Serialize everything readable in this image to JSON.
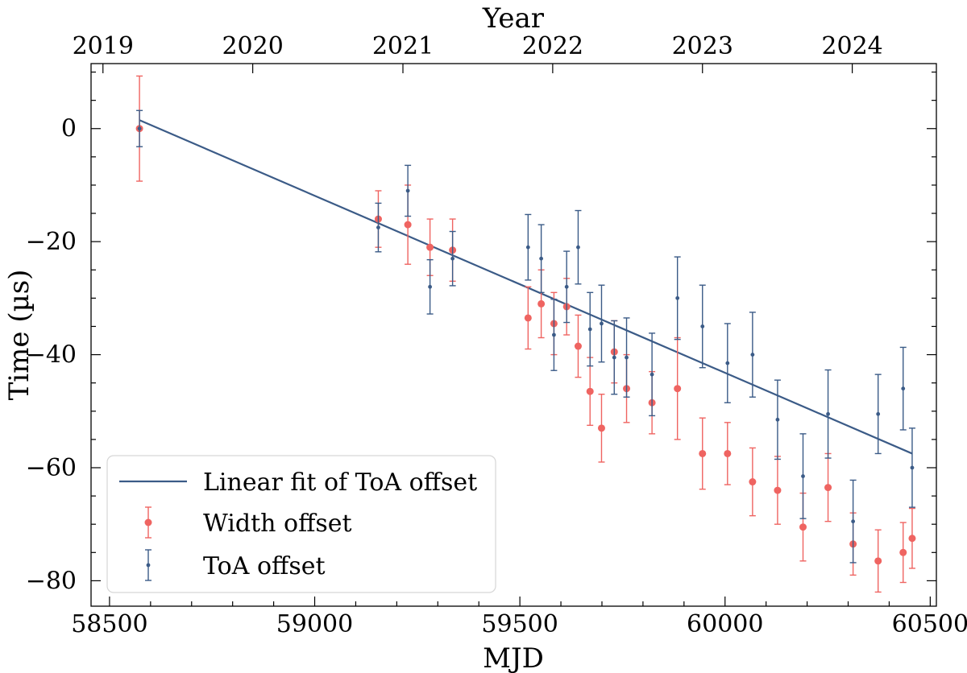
{
  "chart_data": {
    "type": "scatter",
    "title": "",
    "xlabel": "MJD",
    "ylabel": "Time (µs)",
    "top_xlabel": "Year",
    "xlim": [
      58455,
      60515
    ],
    "ylim": [
      -84.5,
      11.5
    ],
    "x_ticks": [
      58500,
      59000,
      59500,
      60000,
      60500
    ],
    "y_ticks": [
      0,
      -20,
      -40,
      -60,
      -80
    ],
    "top_ticks": [
      {
        "label": "2019",
        "mjd": 58484
      },
      {
        "label": "2020",
        "mjd": 58849
      },
      {
        "label": "2021",
        "mjd": 59215
      },
      {
        "label": "2022",
        "mjd": 59580
      },
      {
        "label": "2023",
        "mjd": 59945
      },
      {
        "label": "2024",
        "mjd": 60310
      }
    ],
    "fit": {
      "name": "Linear fit of ToA offset",
      "color": "#3b5b87",
      "points": [
        [
          58573,
          1.5
        ],
        [
          60456,
          -57.5
        ]
      ]
    },
    "legend_position": "lower-left",
    "series": [
      {
        "name": "Width offset",
        "color": "#ef6461",
        "marker": "circle",
        "points": [
          {
            "x": 58573,
            "y": 0,
            "err": 9.3
          },
          {
            "x": 59155,
            "y": -16,
            "err": 5
          },
          {
            "x": 59227,
            "y": -17,
            "err": 7
          },
          {
            "x": 59281,
            "y": -21,
            "err": 5
          },
          {
            "x": 59336,
            "y": -21.5,
            "err": 5.5
          },
          {
            "x": 59520,
            "y": -33.5,
            "err": 5.5
          },
          {
            "x": 59552,
            "y": -31,
            "err": 6
          },
          {
            "x": 59583,
            "y": -34.5,
            "err": 5.5
          },
          {
            "x": 59614,
            "y": -31.5,
            "err": 5
          },
          {
            "x": 59642,
            "y": -38.5,
            "err": 5.5
          },
          {
            "x": 59671,
            "y": -46.5,
            "err": 6
          },
          {
            "x": 59699,
            "y": -53,
            "err": 6
          },
          {
            "x": 59730,
            "y": -39.5,
            "err": 5.5
          },
          {
            "x": 59760,
            "y": -46,
            "err": 6
          },
          {
            "x": 59822,
            "y": -48.5,
            "err": 5.5
          },
          {
            "x": 59884,
            "y": -46,
            "err": 9
          },
          {
            "x": 59945,
            "y": -57.5,
            "err": 6.3
          },
          {
            "x": 60006,
            "y": -57.5,
            "err": 5.5
          },
          {
            "x": 60067,
            "y": -62.5,
            "err": 6
          },
          {
            "x": 60128,
            "y": -64,
            "err": 6
          },
          {
            "x": 60190,
            "y": -70.5,
            "err": 6
          },
          {
            "x": 60251,
            "y": -63.5,
            "err": 6
          },
          {
            "x": 60312,
            "y": -73.5,
            "err": 5.5
          },
          {
            "x": 60373,
            "y": -76.5,
            "err": 5.5
          },
          {
            "x": 60434,
            "y": -75,
            "err": 5.3
          },
          {
            "x": 60456,
            "y": -72.5,
            "err": 5.3
          }
        ]
      },
      {
        "name": "ToA offset",
        "color": "#3b5b87",
        "marker": "dot",
        "points": [
          {
            "x": 58573,
            "y": 0,
            "err": 3.2
          },
          {
            "x": 59155,
            "y": -17.5,
            "err": 4.3
          },
          {
            "x": 59227,
            "y": -11,
            "err": 4.5
          },
          {
            "x": 59281,
            "y": -28,
            "err": 4.8
          },
          {
            "x": 59336,
            "y": -23,
            "err": 4.8
          },
          {
            "x": 59520,
            "y": -21,
            "err": 5.8
          },
          {
            "x": 59552,
            "y": -23,
            "err": 6
          },
          {
            "x": 59583,
            "y": -36.5,
            "err": 6.3
          },
          {
            "x": 59614,
            "y": -28,
            "err": 6.3
          },
          {
            "x": 59642,
            "y": -21,
            "err": 6.5
          },
          {
            "x": 59671,
            "y": -35.5,
            "err": 6.5
          },
          {
            "x": 59699,
            "y": -34.5,
            "err": 6.8
          },
          {
            "x": 59730,
            "y": -40.5,
            "err": 6.5
          },
          {
            "x": 59760,
            "y": -40.5,
            "err": 7
          },
          {
            "x": 59822,
            "y": -43.5,
            "err": 7.3
          },
          {
            "x": 59884,
            "y": -30,
            "err": 7.3
          },
          {
            "x": 59945,
            "y": -35,
            "err": 7.3
          },
          {
            "x": 60006,
            "y": -41.5,
            "err": 7
          },
          {
            "x": 60067,
            "y": -40,
            "err": 7.5
          },
          {
            "x": 60128,
            "y": -51.5,
            "err": 7
          },
          {
            "x": 60190,
            "y": -61.5,
            "err": 7.5
          },
          {
            "x": 60251,
            "y": -50.5,
            "err": 7.8
          },
          {
            "x": 60312,
            "y": -69.5,
            "err": 7.3
          },
          {
            "x": 60373,
            "y": -50.5,
            "err": 7
          },
          {
            "x": 60434,
            "y": -46,
            "err": 7.3
          },
          {
            "x": 60456,
            "y": -60,
            "err": 7
          }
        ]
      }
    ]
  }
}
